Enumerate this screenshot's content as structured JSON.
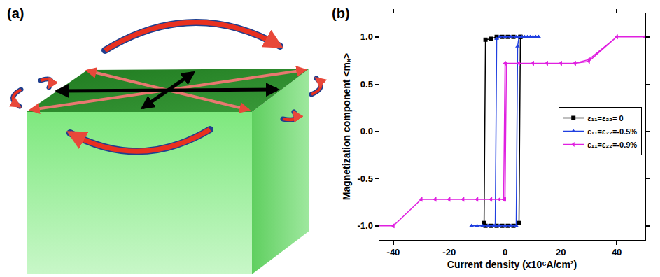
{
  "diagram": {
    "label": "(a)"
  },
  "chart_data": {
    "type": "line",
    "label": "(b)",
    "x_label": "Current density (x10⁶A/cm²)",
    "y_label": "Magnetization component <mₓ>",
    "xlim": [
      -45,
      50
    ],
    "xticks": [
      -40,
      -20,
      0,
      20,
      40
    ],
    "ylim": [
      -1.15,
      1.25
    ],
    "yticks": [
      {
        "value": -1,
        "label": "-1.0"
      },
      {
        "value": -0.5,
        "label": "-0.5"
      },
      {
        "value": 0,
        "label": "0.0"
      },
      {
        "value": 0.5,
        "label": "0.5"
      },
      {
        "value": 1,
        "label": "1.0"
      }
    ],
    "grid": false,
    "legend": "right",
    "series": [
      {
        "name": "ε₁₁=ε₂₂= 0",
        "color": "#000000",
        "marker": "square",
        "line_style": "solid",
        "x": [
          -7,
          -5,
          -3,
          -1,
          1,
          3,
          5,
          5.5,
          5.5,
          3,
          1,
          -1,
          -3,
          -5,
          -7,
          -7.5
        ],
        "values": [
          -1,
          -1,
          -1,
          -1,
          -1,
          -1,
          -0.97,
          1,
          1,
          1,
          1,
          1,
          1,
          0.98,
          0.97,
          -0.97
        ]
      },
      {
        "name": "ε₁₁=ε₂₂=-0.5%",
        "color": "#1f3fe0",
        "marker": "triangle-up",
        "line_style": "solid",
        "x": [
          -12,
          -10,
          -8,
          -6,
          -4,
          -2,
          0,
          2,
          4,
          4.5,
          5,
          7,
          9,
          11,
          12,
          12,
          10,
          8,
          6,
          4,
          2,
          0,
          -2,
          -3,
          -3.5
        ],
        "values": [
          -1,
          -1,
          -1,
          -1,
          -1,
          -1,
          -1,
          -1,
          -1,
          0.9,
          1,
          1,
          1,
          1,
          1,
          1,
          1,
          1,
          1,
          1,
          1,
          1,
          1,
          0.98,
          -1
        ]
      },
      {
        "name": "ε₁₁=ε₂₂=-0.9%",
        "color": "#e020e0",
        "marker": "triangle-left",
        "line_style": "solid",
        "x": [
          -50,
          -40,
          -30,
          -25,
          -20,
          -15,
          -10,
          -5,
          -2,
          0,
          0.5,
          5,
          10,
          15,
          20,
          25,
          30,
          40,
          50,
          40,
          30,
          25,
          20,
          15,
          10,
          5,
          0,
          -0.5,
          -5,
          -10,
          -15,
          -20,
          -25,
          -30,
          -40,
          -50
        ],
        "values": [
          -1,
          -1,
          -0.72,
          -0.72,
          -0.72,
          -0.72,
          -0.72,
          -0.72,
          -0.72,
          -0.72,
          0.72,
          0.72,
          0.72,
          0.72,
          0.72,
          0.72,
          0.74,
          1,
          1,
          1,
          0.76,
          0.72,
          0.72,
          0.72,
          0.72,
          0.72,
          0.72,
          -0.72,
          -0.72,
          -0.72,
          -0.72,
          -0.72,
          -0.72,
          -0.72,
          -1,
          -1
        ]
      }
    ]
  }
}
